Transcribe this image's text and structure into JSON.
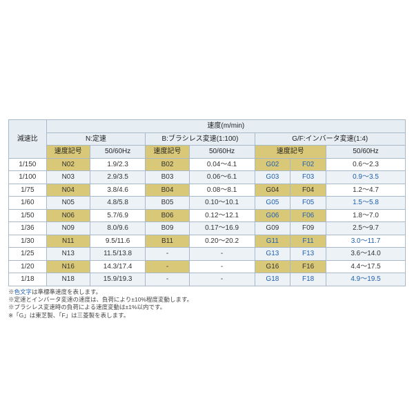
{
  "header": {
    "ratio": "減速比",
    "speed_unit": "速度(m/min)",
    "groups": {
      "n": "N:定速",
      "b": "B:ブラシレス変速(1:100)",
      "gf": "G/F:インバータ変速(1:4)"
    },
    "sub": {
      "code": "速度記号",
      "hz": "50/60Hz"
    }
  },
  "rows": [
    {
      "ratio": "1/150",
      "n_code": "N02",
      "n_hz": "1.9/2.3",
      "b_code": "B02",
      "b_hz": "0.04～4.1",
      "g": "G02",
      "f": "F02",
      "gf_hz": "0.6～2.3",
      "g_blue": true,
      "f_blue": true,
      "gfhz_blue": false
    },
    {
      "ratio": "1/100",
      "n_code": "N03",
      "n_hz": "2.9/3.5",
      "b_code": "B03",
      "b_hz": "0.06～6.1",
      "g": "G03",
      "f": "F03",
      "gf_hz": "0.9～3.5",
      "g_blue": true,
      "f_blue": true,
      "gfhz_blue": true
    },
    {
      "ratio": "1/75",
      "n_code": "N04",
      "n_hz": "3.8/4.6",
      "b_code": "B04",
      "b_hz": "0.08～8.1",
      "g": "G04",
      "f": "F04",
      "gf_hz": "1.2～4.7",
      "g_blue": false,
      "f_blue": false,
      "gfhz_blue": false
    },
    {
      "ratio": "1/60",
      "n_code": "N05",
      "n_hz": "4.8/5.8",
      "b_code": "B05",
      "b_hz": "0.10～10.1",
      "g": "G05",
      "f": "F05",
      "gf_hz": "1.5～5.8",
      "g_blue": true,
      "f_blue": true,
      "gfhz_blue": true
    },
    {
      "ratio": "1/50",
      "n_code": "N06",
      "n_hz": "5.7/6.9",
      "b_code": "B06",
      "b_hz": "0.12～12.1",
      "g": "G06",
      "f": "F06",
      "gf_hz": "1.8～7.0",
      "g_blue": true,
      "f_blue": true,
      "gfhz_blue": false
    },
    {
      "ratio": "1/36",
      "n_code": "N09",
      "n_hz": "8.0/9.6",
      "b_code": "B09",
      "b_hz": "0.17～16.9",
      "g": "G09",
      "f": "F09",
      "gf_hz": "2.5～9.7",
      "g_blue": false,
      "f_blue": false,
      "gfhz_blue": false
    },
    {
      "ratio": "1/30",
      "n_code": "N11",
      "n_hz": "9.5/11.6",
      "b_code": "B11",
      "b_hz": "0.20～20.2",
      "g": "G11",
      "f": "F11",
      "gf_hz": "3.0～11.7",
      "g_blue": true,
      "f_blue": true,
      "gfhz_blue": true
    },
    {
      "ratio": "1/25",
      "n_code": "N13",
      "n_hz": "11.5/13.8",
      "b_code": "-",
      "b_hz": "-",
      "g": "G13",
      "f": "F13",
      "gf_hz": "3.6～14.0",
      "g_blue": true,
      "f_blue": true,
      "gfhz_blue": false
    },
    {
      "ratio": "1/20",
      "n_code": "N16",
      "n_hz": "14.3/17.4",
      "b_code": "-",
      "b_hz": "-",
      "g": "G16",
      "f": "F16",
      "gf_hz": "4.4～17.5",
      "g_blue": false,
      "f_blue": false,
      "gfhz_blue": false
    },
    {
      "ratio": "1/18",
      "n_code": "N18",
      "n_hz": "15.9/19.3",
      "b_code": "-",
      "b_hz": "-",
      "g": "G18",
      "f": "F18",
      "gf_hz": "4.9～19.5",
      "g_blue": true,
      "f_blue": true,
      "gfhz_blue": true
    }
  ],
  "notes": {
    "n1_pre": "※",
    "n1_blue": "色文字",
    "n1_post": "は準標準速度を表します。",
    "n2": "※定速とインバータ変速の速度は、負荷により±10%程度変動します。",
    "n3": "※ブラシレス変速時の負荷による速度変動は±1%以内です。",
    "n4": "※「G」は東芝製、「F」は三菱製を表します。"
  },
  "style": {
    "col_widths_pct": [
      9.5,
      11,
      14,
      11,
      16.5,
      9,
      9,
      20
    ],
    "border_color": "#a7b8c9",
    "header_bg": "#e6edf3",
    "yellow_bg": "#d9c877",
    "alt_bg": "#edf2f6",
    "link_color": "#2060b0"
  }
}
